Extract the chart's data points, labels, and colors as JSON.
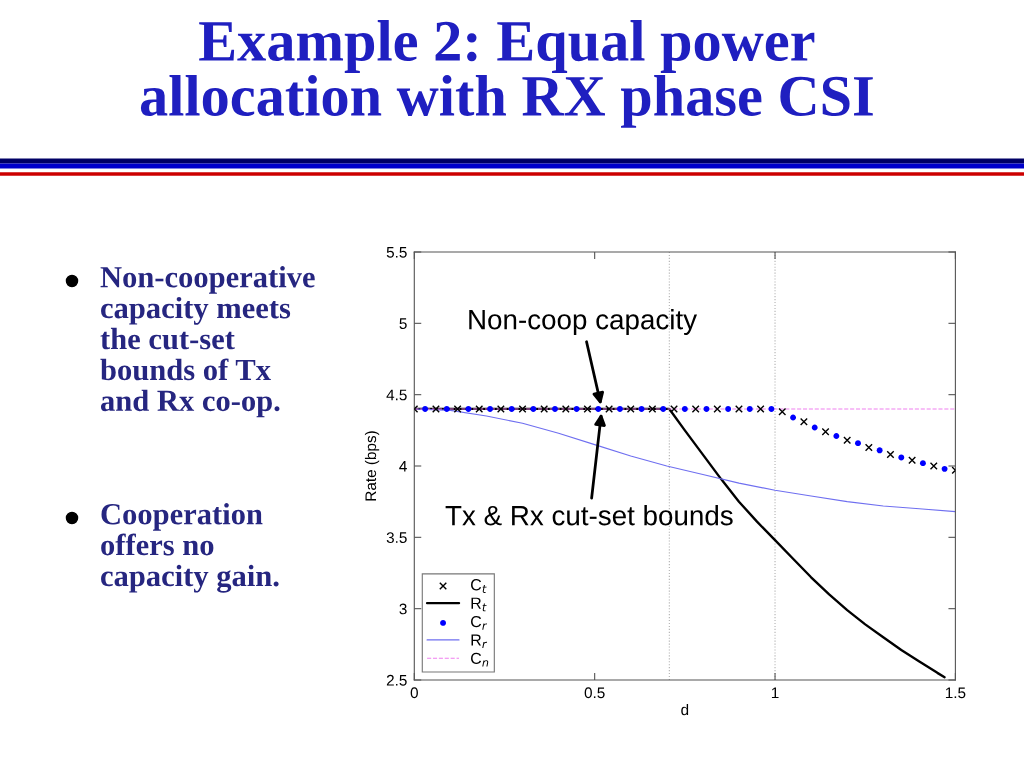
{
  "chart_data": {
    "type": "line",
    "title": "Example 2: Equal power allocation with RX phase CSI",
    "xlabel": "d",
    "ylabel": "Rate (bps)",
    "xlim": [
      0,
      1.5
    ],
    "ylim": [
      2.5,
      5.5
    ],
    "xticks": [
      0,
      0.5,
      1,
      1.5
    ],
    "yticks": [
      2.5,
      3,
      3.5,
      4,
      4.5,
      5,
      5.5
    ],
    "legend": "bottom left",
    "series": [
      {
        "name": "C$_{t}$",
        "type": "scatter",
        "marker": "cross",
        "color": "#000000",
        "x": [
          0,
          0.06,
          0.12,
          0.18,
          0.24,
          0.3,
          0.36,
          0.42,
          0.48,
          0.54,
          0.6,
          0.66,
          0.72,
          0.78,
          0.84,
          0.9,
          0.96,
          1.02,
          1.08,
          1.14,
          1.2,
          1.26,
          1.32,
          1.38,
          1.44,
          1.5
        ],
        "values": [
          4.4,
          4.4,
          4.4,
          4.4,
          4.4,
          4.4,
          4.4,
          4.4,
          4.4,
          4.4,
          4.4,
          4.4,
          4.4,
          4.4,
          4.4,
          4.4,
          4.4,
          4.38,
          4.31,
          4.24,
          4.18,
          4.13,
          4.08,
          4.04,
          4.0,
          3.97
        ]
      },
      {
        "name": "R$_{t}$",
        "line_style": "solid",
        "color": "#000000",
        "x": [
          0,
          0.707,
          0.75,
          0.8,
          0.85,
          0.9,
          0.95,
          1.0,
          1.05,
          1.1,
          1.15,
          1.2,
          1.25,
          1.3,
          1.35,
          1.4,
          1.45,
          1.47
        ],
        "values": [
          4.4,
          4.4,
          4.25,
          4.08,
          3.91,
          3.75,
          3.61,
          3.48,
          3.35,
          3.22,
          3.1,
          2.99,
          2.89,
          2.8,
          2.71,
          2.63,
          2.55,
          2.52
        ]
      },
      {
        "name": "C$_{r}$",
        "type": "scatter",
        "marker": "circle",
        "color": "#0000ff",
        "x": [
          0.03,
          0.09,
          0.15,
          0.21,
          0.27,
          0.33,
          0.39,
          0.45,
          0.51,
          0.57,
          0.63,
          0.69,
          0.75,
          0.81,
          0.87,
          0.93,
          0.99,
          1.05,
          1.11,
          1.17,
          1.23,
          1.29,
          1.35,
          1.41,
          1.47
        ],
        "values": [
          4.4,
          4.4,
          4.4,
          4.4,
          4.4,
          4.4,
          4.4,
          4.4,
          4.4,
          4.4,
          4.4,
          4.4,
          4.4,
          4.4,
          4.4,
          4.4,
          4.4,
          4.34,
          4.27,
          4.21,
          4.16,
          4.11,
          4.06,
          4.02,
          3.98
        ]
      },
      {
        "name": "R$_{r}$",
        "line_style": "solid",
        "color": "#6f6ff0",
        "x": [
          0,
          0.1,
          0.2,
          0.3,
          0.4,
          0.5,
          0.6,
          0.7,
          0.8,
          0.9,
          1.0,
          1.1,
          1.2,
          1.3,
          1.4,
          1.5
        ],
        "values": [
          4.4,
          4.39,
          4.35,
          4.3,
          4.23,
          4.15,
          4.07,
          4.0,
          3.94,
          3.88,
          3.83,
          3.79,
          3.75,
          3.72,
          3.7,
          3.68
        ]
      },
      {
        "name": "C$_{n}$",
        "line_style": "dashed",
        "color": "#f080f0",
        "x": [
          0,
          1.5
        ],
        "values": [
          4.4,
          4.4
        ]
      }
    ],
    "ref_lines": [
      {
        "axis": "x",
        "value": 0.707,
        "color": "#b0b0b0",
        "line_style": "dotted"
      },
      {
        "axis": "x",
        "value": 1,
        "color": "#b0b0b0",
        "line_style": "dotted"
      }
    ],
    "annotations": [
      {
        "text": "Non-coop capacity",
        "x": 0.52,
        "y": 4.4
      },
      {
        "text": "Tx & Rx cut-set bounds",
        "x": 0.52,
        "y": 4.4
      },
      "Non-cooperative capacity meets the cut-set bounds of Tx and Rx co-op.",
      "Cooperation offers no capacity gain."
    ]
  }
}
